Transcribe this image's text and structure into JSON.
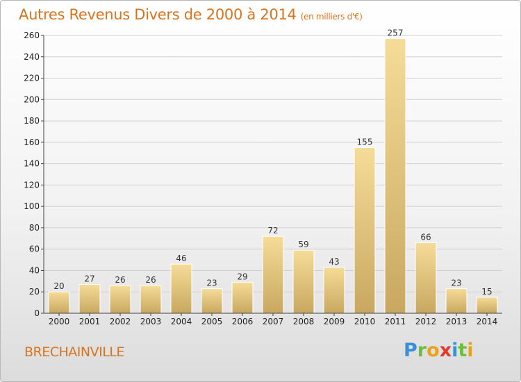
{
  "title": "Autres Revenus Divers de 2000 à 2014",
  "unit_note": "(en milliers d'€)",
  "town": "BRECHAINVILLE",
  "logo": {
    "letters": [
      "P",
      "r",
      "o",
      "x",
      "i",
      "t",
      "i"
    ],
    "colors": [
      "#3a8fd8",
      "#6cbf3a",
      "#e8a21c",
      "#e23b2e",
      "#3a8fd8",
      "#6cbf3a",
      "#e8a21c"
    ]
  },
  "colors": {
    "title": "#d9731c",
    "bar_light": "#f5dc98",
    "bar_dark": "#c8a860",
    "grid": "#cfcfcf"
  },
  "chart_data": {
    "type": "bar",
    "title": "Autres Revenus Divers de 2000 à 2014",
    "subtitle": "(en milliers d'€)",
    "categories": [
      "2000",
      "2001",
      "2002",
      "2003",
      "2004",
      "2005",
      "2006",
      "2007",
      "2008",
      "2009",
      "2010",
      "2011",
      "2012",
      "2013",
      "2014"
    ],
    "values": [
      20,
      27,
      26,
      26,
      46,
      23,
      29,
      72,
      59,
      43,
      155,
      257,
      66,
      23,
      15
    ],
    "ylim": [
      0,
      260
    ],
    "yticks": [
      0,
      20,
      40,
      60,
      80,
      100,
      120,
      140,
      160,
      180,
      200,
      220,
      240,
      260
    ],
    "grid": true,
    "xlabel": "",
    "ylabel": ""
  }
}
